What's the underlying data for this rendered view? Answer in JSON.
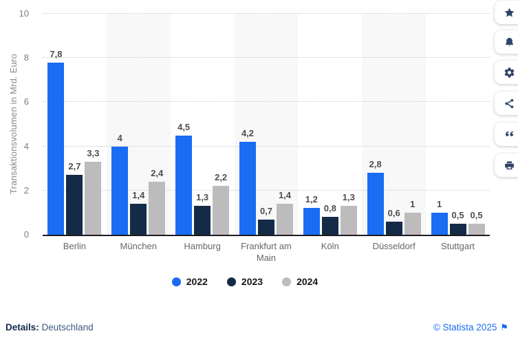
{
  "chart_data": {
    "type": "bar",
    "title": "",
    "xlabel": "",
    "ylabel": "Transaktionsvolumen in Mrd. Euro",
    "ylim": [
      0,
      10
    ],
    "yticks": [
      0,
      2,
      4,
      6,
      8,
      10
    ],
    "grid": true,
    "grid_style": "dotted horizontal",
    "legend_position": "bottom",
    "alternating_bands": true,
    "band_color": "#f8f8f9",
    "categories": [
      "Berlin",
      "München",
      "Hamburg",
      "Frankfurt am Main",
      "Köln",
      "Düsseldorf",
      "Stuttgart"
    ],
    "series": [
      {
        "name": "2022",
        "color": "#1a6cf2",
        "values": [
          7.8,
          4,
          4.5,
          4.2,
          1.2,
          2.8,
          1
        ],
        "labels": [
          "7,8",
          "4",
          "4,5",
          "4,2",
          "1,2",
          "2,8",
          "1"
        ]
      },
      {
        "name": "2023",
        "color": "#142b47",
        "values": [
          2.7,
          1.4,
          1.3,
          0.7,
          0.8,
          0.6,
          0.5
        ],
        "labels": [
          "2,7",
          "1,4",
          "1,3",
          "0,7",
          "0,8",
          "0,6",
          "0,5"
        ]
      },
      {
        "name": "2024",
        "color": "#bcbcbc",
        "values": [
          3.3,
          2.4,
          2.2,
          1.4,
          1.3,
          1,
          0.5
        ],
        "labels": [
          "3,3",
          "2,4",
          "2,2",
          "1,4",
          "1,3",
          "1",
          "0,5"
        ]
      }
    ]
  },
  "sidebar": {
    "icon_color": "#2e4468",
    "buttons": [
      {
        "name": "favorite-button",
        "icon": "star-icon"
      },
      {
        "name": "notification-button",
        "icon": "bell-icon"
      },
      {
        "name": "settings-button",
        "icon": "gear-icon"
      },
      {
        "name": "share-button",
        "icon": "share-icon"
      },
      {
        "name": "citation-button",
        "icon": "quote-icon"
      },
      {
        "name": "print-button",
        "icon": "printer-icon"
      }
    ]
  },
  "footer": {
    "details_label": "Details:",
    "details_value": "Deutschland",
    "copyright": "© Statista 2025",
    "flag_icon": "⚑"
  }
}
